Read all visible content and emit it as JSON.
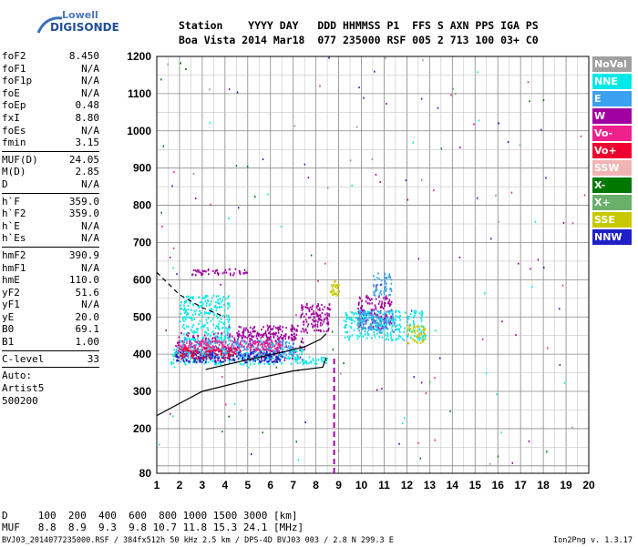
{
  "logo": {
    "line1": "Lowell",
    "line2": "DIGISONDE"
  },
  "header": {
    "labels": "Station    YYYY DAY   DDD HHMMSS P1  FFS S AXN PPS IGA PS",
    "values": "Boa Vista 2014 Mar18  077 235000 RSF 005 2 713 100 03+ C0"
  },
  "params_group1": [
    {
      "k": "foF2",
      "v": "8.450"
    },
    {
      "k": "foF1",
      "v": "N/A"
    },
    {
      "k": "foF1p",
      "v": "N/A"
    },
    {
      "k": "foE",
      "v": "N/A"
    },
    {
      "k": "foEp",
      "v": "0.48"
    },
    {
      "k": "fxI",
      "v": "8.80"
    },
    {
      "k": "foEs",
      "v": "N/A"
    },
    {
      "k": "fmin",
      "v": "3.15"
    }
  ],
  "params_group2": [
    {
      "k": "MUF(D)",
      "v": "24.05"
    },
    {
      "k": "M(D)",
      "v": "2.85"
    },
    {
      "k": "D",
      "v": "N/A"
    }
  ],
  "params_group3": [
    {
      "k": "h`F",
      "v": "359.0"
    },
    {
      "k": "h`F2",
      "v": "359.0"
    },
    {
      "k": "h`E",
      "v": "N/A"
    },
    {
      "k": "h`Es",
      "v": "N/A"
    }
  ],
  "params_group4": [
    {
      "k": "hmF2",
      "v": "390.9"
    },
    {
      "k": "hmF1",
      "v": "N/A"
    },
    {
      "k": "hmE",
      "v": "110.0"
    },
    {
      "k": "yF2",
      "v": "51.6"
    },
    {
      "k": "yF1",
      "v": "N/A"
    },
    {
      "k": "yE",
      "v": "20.0"
    },
    {
      "k": "B0",
      "v": "69.1"
    },
    {
      "k": "B1",
      "v": "1.00"
    }
  ],
  "clevel": {
    "k": "C-level",
    "v": "33"
  },
  "scaling": {
    "line1": "Auto:",
    "line2": "Artist5",
    "line3": "500200"
  },
  "legend": [
    {
      "name": "NoVal",
      "color": "#a0a0a0"
    },
    {
      "name": "NNE",
      "color": "#00e8e8"
    },
    {
      "name": "E",
      "color": "#3ca0f0"
    },
    {
      "name": "W",
      "color": "#a000a0"
    },
    {
      "name": "Vo-",
      "color": "#f0208c"
    },
    {
      "name": "Vo+",
      "color": "#f00030"
    },
    {
      "name": "SSW",
      "color": "#f0b4b4"
    },
    {
      "name": "X-",
      "color": "#007800"
    },
    {
      "name": "X+",
      "color": "#6ab06a"
    },
    {
      "name": "SSE",
      "color": "#c8c800"
    },
    {
      "name": "NNW",
      "color": "#2020c8"
    }
  ],
  "muf_table": {
    "d_row": "D     100  200  400  600  800 1000 1500 3000 [km]",
    "muf_row": "MUF   8.8  8.9  9.3  9.8 10.7 11.8 15.3 24.1 [MHz]"
  },
  "footer": "BVJ03_2014077235000.RSF / 384fx512h 50 kHz 2.5 km / DPS-4D BVJ03 003 / 2.8 N 299.3 E",
  "version": "Ion2Png v. 1.3.17",
  "chart_data": {
    "type": "scatter",
    "xlim": [
      1,
      20
    ],
    "ylim": [
      80,
      1200
    ],
    "x_ticks": [
      "1",
      "2",
      "3",
      "4",
      "5",
      "6",
      "7",
      "8",
      "9",
      "10",
      "11",
      "12",
      "13",
      "14",
      "15",
      "16",
      "17",
      "18",
      "19",
      "20"
    ],
    "y_ticks": [
      "80",
      "200",
      "300",
      "400",
      "500",
      "600",
      "700",
      "800",
      "900",
      "1000",
      "1100",
      "1200"
    ],
    "y_tick_values": [
      80,
      200,
      300,
      400,
      500,
      600,
      700,
      800,
      900,
      1000,
      1100,
      1200
    ],
    "grid": true,
    "series": [
      {
        "name": "W",
        "color": "#a000a0",
        "bands": [
          [
            1.8,
            7.5,
            385,
            460
          ],
          [
            4.5,
            7.2,
            440,
            480
          ],
          [
            2.5,
            5.0,
            615,
            632
          ],
          [
            7.3,
            8.6,
            460,
            540
          ],
          [
            9.8,
            11.3,
            470,
            560
          ]
        ]
      },
      {
        "name": "NNE",
        "color": "#00e8e8",
        "bands": [
          [
            1.6,
            7.5,
            375,
            420
          ],
          [
            2.0,
            4.2,
            430,
            560
          ],
          [
            7.0,
            8.5,
            375,
            395
          ],
          [
            9.2,
            12.8,
            440,
            520
          ]
        ]
      },
      {
        "name": "E",
        "color": "#3ca0f0",
        "bands": [
          [
            1.8,
            7.0,
            395,
            440
          ],
          [
            9.8,
            11.5,
            460,
            520
          ],
          [
            10.5,
            11.3,
            560,
            620
          ]
        ]
      },
      {
        "name": "NNW",
        "color": "#2020c8",
        "bands": [
          [
            1.8,
            6.5,
            380,
            410
          ]
        ]
      },
      {
        "name": "Vo-",
        "color": "#f0208c",
        "bands": [
          [
            1.8,
            6.5,
            410,
            440
          ]
        ]
      },
      {
        "name": "Vo+",
        "color": "#f00030",
        "bands": [
          [
            2.0,
            4.5,
            390,
            420
          ]
        ]
      },
      {
        "name": "SSE",
        "color": "#c8c800",
        "bands": [
          [
            12.0,
            12.8,
            430,
            480
          ],
          [
            8.6,
            9.0,
            560,
            600
          ]
        ]
      }
    ],
    "curves": [
      {
        "name": "profile",
        "points": [
          [
            1.0,
            235
          ],
          [
            3.0,
            300
          ],
          [
            5.0,
            330
          ],
          [
            7.0,
            355
          ],
          [
            8.3,
            365
          ],
          [
            8.45,
            391
          ]
        ]
      },
      {
        "name": "virtual-height",
        "points": [
          [
            3.15,
            359
          ],
          [
            5.0,
            385
          ],
          [
            6.5,
            405
          ],
          [
            7.5,
            420
          ],
          [
            8.2,
            440
          ],
          [
            8.45,
            455
          ]
        ]
      },
      {
        "name": "extrapolation",
        "dashed": true,
        "points": [
          [
            1.0,
            620
          ],
          [
            2.0,
            560
          ],
          [
            3.0,
            525
          ],
          [
            4.0,
            500
          ]
        ]
      }
    ],
    "vertical_marker": {
      "x": 8.8,
      "y_from": 80,
      "y_to": 395,
      "dashed": true,
      "color": "#a000a0"
    }
  }
}
